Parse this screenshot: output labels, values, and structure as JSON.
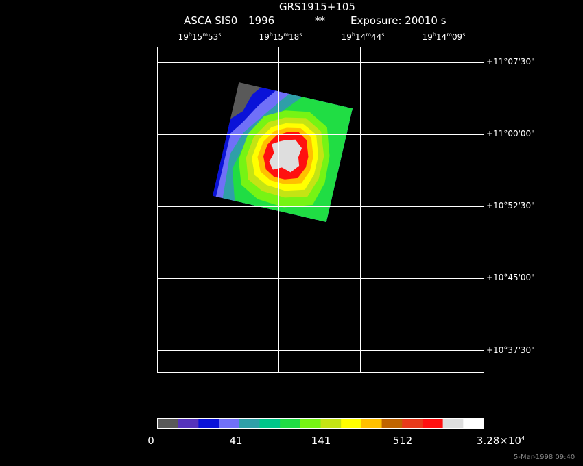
{
  "header": {
    "object": "GRS1915+105",
    "instrument": "ASCA SIS0",
    "year": "1996",
    "marker": "**",
    "exposure": "Exposure: 20010 s"
  },
  "ra_ticks": [
    {
      "h": "19",
      "m": "15",
      "s": "53"
    },
    {
      "h": "19",
      "m": "15",
      "s": "18"
    },
    {
      "h": "19",
      "m": "14",
      "s": "44"
    },
    {
      "h": "19",
      "m": "14",
      "s": "09"
    }
  ],
  "dec_ticks": [
    "+11°07'30\"",
    "+11°00'00\"",
    "+10°52'30\"",
    "+10°45'00\"",
    "+10°37'30\""
  ],
  "colorbar": {
    "colors": [
      "#595959",
      "#5533bb",
      "#0a12d8",
      "#7070f8",
      "#2f9fa8",
      "#00c68a",
      "#20dd44",
      "#76f414",
      "#c4e414",
      "#ffff00",
      "#ffc000",
      "#c06400",
      "#e83a1a",
      "#ff1010",
      "#dedede",
      "#ffffff"
    ],
    "labels": [
      "0",
      "41",
      "141",
      "512",
      "3.28×10"
    ],
    "label_exponent": "4"
  },
  "image_colors": {
    "background": "#595959",
    "level_blue": "#0a12d8",
    "level_lightblue": "#7070f8",
    "level_teal": "#2f9fa8",
    "level_green": "#20dd44",
    "level_lime": "#76f414",
    "level_yellowgreen": "#c4e414",
    "level_yellow": "#ffff00",
    "level_orange": "#ffc000",
    "level_red": "#ff1010",
    "core": "#dedede"
  },
  "footer": {
    "timestamp": "5-Mar-1998 09:40"
  }
}
